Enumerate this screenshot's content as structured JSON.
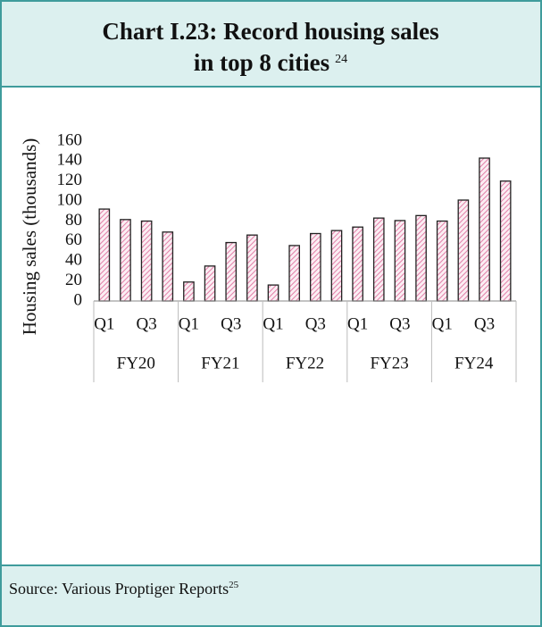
{
  "chart_data": {
    "type": "bar",
    "title_lines": [
      "Chart I.23: Record housing sales",
      "in top 8 cities"
    ],
    "title_footnote": "24",
    "y_label": "Housing sales (thousands)",
    "categories": [
      "Q1",
      null,
      "Q3",
      null,
      "Q1",
      null,
      "Q3",
      null,
      "Q1",
      null,
      "Q3",
      null,
      "Q1",
      null,
      "Q3",
      null,
      "Q1",
      null,
      "Q3",
      null
    ],
    "groups": [
      "FY20",
      "FY21",
      "FY22",
      "FY23",
      "FY24"
    ],
    "values": [
      92,
      81.5,
      80,
      69,
      19,
      35,
      58.5,
      66,
      16,
      55.5,
      67.5,
      70.5,
      74,
      83,
      80.5,
      85.5,
      80,
      101,
      143,
      120
    ],
    "color": "#e27fa8",
    "ylim": [
      0,
      160
    ],
    "yticks": [
      0,
      20,
      40,
      60,
      80,
      100,
      120,
      140,
      160
    ],
    "source": "Source: Various Proptiger Reports",
    "source_footnote": "25"
  }
}
